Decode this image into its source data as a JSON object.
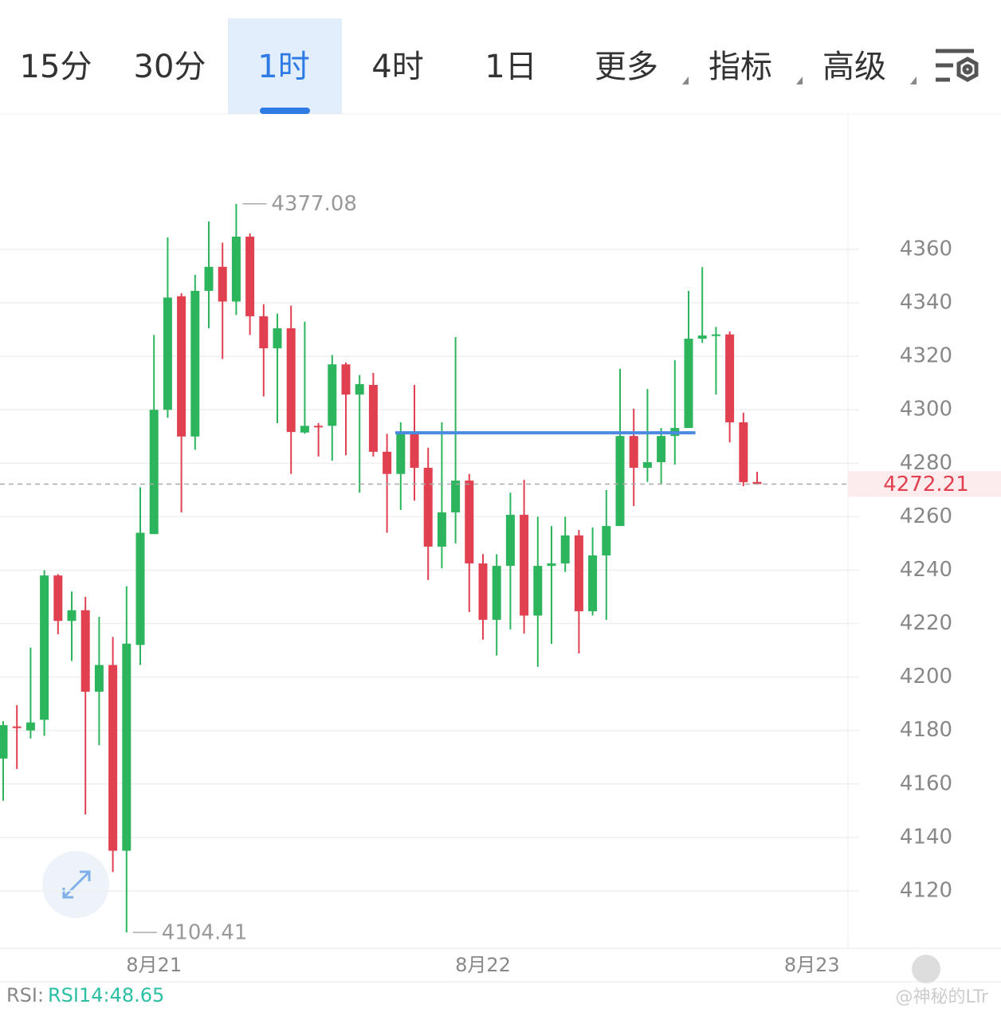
{
  "tabs": [
    {
      "label": "15分",
      "dropdown": false
    },
    {
      "label": "30分",
      "dropdown": false
    },
    {
      "label": "1时",
      "dropdown": false
    },
    {
      "label": "4时",
      "dropdown": false
    },
    {
      "label": "1日",
      "dropdown": false
    },
    {
      "label": "更多",
      "dropdown": true
    },
    {
      "label": "指标",
      "dropdown": true
    },
    {
      "label": "高级",
      "dropdown": true
    }
  ],
  "selected_tab": 2,
  "chart_data": {
    "type": "candlestick",
    "categories": [
      null,
      null,
      null,
      null,
      null,
      null,
      null,
      null,
      null,
      null,
      null,
      "8月21",
      null,
      null,
      null,
      null,
      null,
      null,
      null,
      null,
      null,
      null,
      null,
      null,
      null,
      null,
      null,
      null,
      null,
      null,
      null,
      null,
      null,
      null,
      null,
      "8月22",
      null,
      null,
      null,
      null,
      null,
      null,
      null,
      null,
      null,
      null,
      null,
      null,
      null,
      null,
      null,
      null,
      null,
      null,
      null,
      null,
      null,
      null,
      null,
      "8月23"
    ],
    "open": [
      4169.5,
      4181.5,
      4180,
      4184,
      4238,
      4221,
      4225,
      4194.5,
      4204.5,
      4135,
      4212,
      4253.5,
      4300,
      4342.5,
      4290,
      4344.5,
      4353.5,
      4340.5,
      4364.8,
      4335,
      4323,
      4330.5,
      4291.5,
      4294,
      4294,
      4317,
      4305.7,
      4309.3,
      4284.3,
      4276,
      4291,
      4278.3,
      4248.8,
      4261.6,
      4273.5,
      4242.5,
      4221.4,
      4241.6,
      4260.7,
      4223,
      4241.6,
      4242.5,
      4253,
      4224.6,
      4245.5,
      4256.5,
      4290.2,
      4278.3,
      4280.4,
      4290.2,
      4293.2,
      4326.6,
      4328,
      4328.2,
      4295.3,
      4273,
      null,
      null,
      null,
      null
    ],
    "high": [
      4183.5,
      4189.5,
      4211,
      4240,
      4238.5,
      4232,
      4230,
      4222.5,
      4215,
      4234,
      4271,
      4328,
      4364.5,
      4343.6,
      4350.5,
      4370.5,
      4362.5,
      4377.08,
      4366,
      4339.5,
      4336,
      4339,
      4333,
      4295,
      4320.5,
      4317.7,
      4313,
      4313.8,
      4291,
      4295.3,
      4309.3,
      4285.8,
      4295.3,
      4327.2,
      4276,
      4246,
      4246,
      4269,
      4273.8,
      4260,
      4256.5,
      4260,
      4255,
      4256,
      4270,
      4315.3,
      4300.4,
      4307.8,
      4293.2,
      4318.6,
      4344.5,
      4353.4,
      4331,
      4329.3,
      4298.9,
      4276.8,
      null,
      null,
      null,
      null
    ],
    "low": [
      4153.7,
      4165.6,
      4177,
      4178,
      4216,
      4206,
      4148.6,
      4174.5,
      4127,
      4104.41,
      4204.5,
      4253.5,
      4297,
      4261.6,
      4285,
      4330.5,
      4319,
      4335.5,
      4328,
      4305,
      4295,
      4276,
      4291,
      4282.5,
      4281,
      4283,
      4269,
      4282.5,
      4254,
      4262.5,
      4266,
      4236.3,
      4240.7,
      4250,
      4224.3,
      4214,
      4208,
      4217.8,
      4216.3,
      4203.8,
      4212.4,
      4239.3,
      4208.8,
      4223,
      4221.4,
      4256.5,
      4264,
      4273,
      4272,
      4279.5,
      4293.2,
      4325,
      4305.7,
      4287.8,
      4271.4,
      4272,
      null,
      null,
      null,
      null
    ],
    "close": [
      4182,
      4181,
      4183,
      4238,
      4221,
      4225,
      4194.5,
      4204.5,
      4135,
      4212.5,
      4254,
      4300,
      4342,
      4290,
      4344.5,
      4353.5,
      4340.5,
      4364.8,
      4335,
      4323,
      4330.5,
      4291.7,
      4294,
      4293.5,
      4317,
      4305.7,
      4309.6,
      4284.3,
      4276,
      4291,
      4278.3,
      4248.8,
      4261.6,
      4273.5,
      4242.5,
      4221.4,
      4241.6,
      4260.7,
      4223,
      4241.6,
      4242.5,
      4253,
      4224.6,
      4245.5,
      4256.5,
      4290.2,
      4278.3,
      4280.4,
      4290.2,
      4293.2,
      4326.6,
      4327.8,
      4328.2,
      4295.3,
      4272.9,
      4272.21,
      null,
      null,
      null,
      null
    ],
    "up_color": "#2db55d",
    "down_color": "#e0404f",
    "ylim": [
      4098.5,
      4410.7
    ],
    "yticks": [
      4120,
      4140,
      4160,
      4180,
      4200,
      4220,
      4240,
      4260,
      4280,
      4300,
      4320,
      4340,
      4360
    ],
    "grid": true,
    "hline": {
      "value": 4291.4,
      "color": "#4a8ae0"
    }
  },
  "rsi": {
    "name": "RSI:",
    "value_text": "RSI14:48.65"
  },
  "watermark": "@神秘的LTr"
}
